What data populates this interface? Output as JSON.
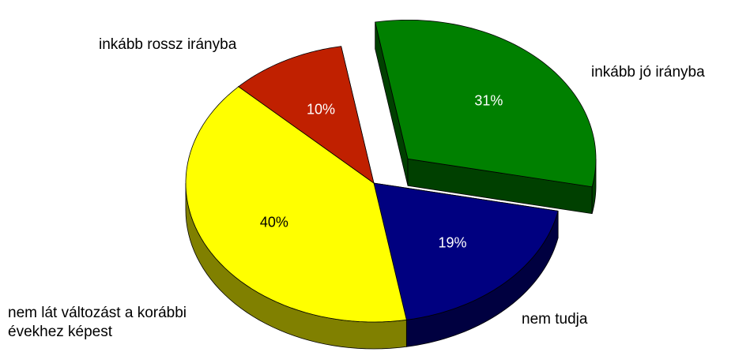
{
  "chart_data": {
    "type": "pie",
    "categories": [
      "inkább jó irányba",
      "nem tudja",
      "nem lát változást a korábbi évekhez képest",
      "inkább rossz irányba"
    ],
    "values": [
      31,
      19,
      40,
      10
    ],
    "value_labels": [
      "31%",
      "19%",
      "40%",
      "10%"
    ],
    "colors": [
      "#008000",
      "#000080",
      "#ffff00",
      "#c02000"
    ],
    "explode": [
      true,
      false,
      false,
      false
    ]
  }
}
